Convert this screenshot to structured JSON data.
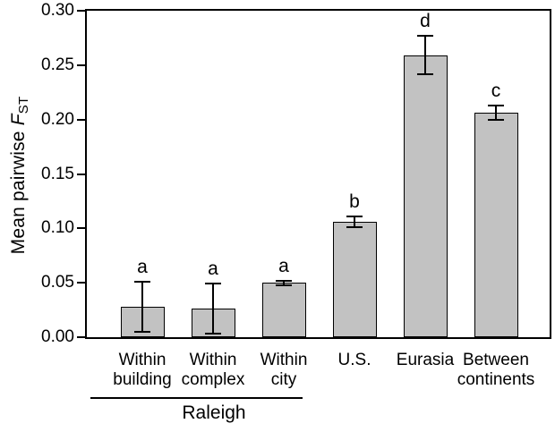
{
  "figure": {
    "ylabel": {
      "prefix": "Mean pairwise ",
      "symbol": "F",
      "subscript": "ST"
    }
  },
  "chart_data": {
    "type": "bar",
    "title": "",
    "xlabel": "",
    "ylabel": "Mean pairwise F_ST",
    "ylim": [
      0,
      0.3
    ],
    "ytick_labels": [
      "0.00",
      "0.05",
      "0.10",
      "0.15",
      "0.20",
      "0.25",
      "0.30"
    ],
    "categories": [
      "Within building",
      "Within complex",
      "Within city",
      "U.S.",
      "Eurasia",
      "Between continents"
    ],
    "category_label_lines": [
      [
        "Within",
        "building"
      ],
      [
        "Within",
        "complex"
      ],
      [
        "Within",
        "city"
      ],
      [
        "U.S."
      ],
      [
        "Eurasia"
      ],
      [
        "Between",
        "continents"
      ]
    ],
    "values": [
      0.028,
      0.026,
      0.05,
      0.106,
      0.259,
      0.206
    ],
    "error_low": [
      0.005,
      0.003,
      0.048,
      0.101,
      0.242,
      0.2
    ],
    "error_high": [
      0.051,
      0.049,
      0.052,
      0.111,
      0.277,
      0.213
    ],
    "sig_letters": [
      "a",
      "a",
      "a",
      "b",
      "d",
      "c"
    ],
    "group_annotation": {
      "label": "Raleigh",
      "categories": [
        "Within building",
        "Within complex",
        "Within city"
      ]
    },
    "bar_color": "#c2c2c2",
    "bar_border_color": "#000000",
    "grid": false,
    "legend": false
  }
}
